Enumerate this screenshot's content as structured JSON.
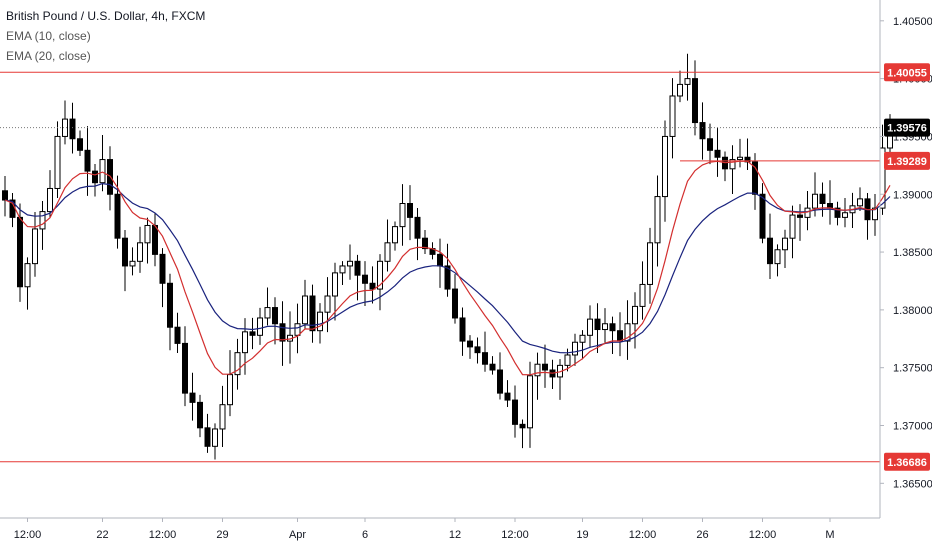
{
  "legend": {
    "symbol": "British Pound / U.S. Dollar, 4h, FXCM",
    "indicators": [
      "EMA (10, close)",
      "EMA (20, close)"
    ]
  },
  "colors": {
    "up": "#ffffff",
    "down": "#000000",
    "wick": "#000000",
    "ema10": "#d32f2f",
    "ema20": "#1a237e",
    "level": "#e53935",
    "last_price": "#000000",
    "axis_text": "#131722"
  },
  "chart_data": {
    "type": "candlestick",
    "ylim": [
      1.362,
      1.4068
    ],
    "y_ticks": [
      "1.40500",
      "1.40000",
      "1.39500",
      "1.39000",
      "1.38500",
      "1.38000",
      "1.37500",
      "1.37000",
      "1.36500"
    ],
    "x_ticks": [
      "12:00",
      "22",
      "12:00",
      "29",
      "Apr",
      "6",
      "12",
      "12:00",
      "19",
      "12:00",
      "26",
      "12:00",
      "M"
    ],
    "x_tick_index": [
      3,
      13,
      21,
      29,
      39,
      48,
      60,
      68,
      77,
      85,
      93,
      101,
      110
    ],
    "horizontal_levels": [
      {
        "price": 1.40055,
        "label": "1.40055",
        "from_index": 0,
        "to_index": null
      },
      {
        "price": 1.39289,
        "label": "1.39289",
        "from_index": 90,
        "to_index": null
      },
      {
        "price": 1.36686,
        "label": "1.36686",
        "from_index": 0,
        "to_index": null
      }
    ],
    "last_price": {
      "price": 1.39576,
      "label": "1.39576"
    },
    "close": [
      1.3895,
      1.388,
      1.382,
      1.384,
      1.387,
      1.3885,
      1.3905,
      1.395,
      1.3965,
      1.3948,
      1.3938,
      1.392,
      1.391,
      1.393,
      1.39,
      1.3862,
      1.3838,
      1.3842,
      1.3858,
      1.3873,
      1.3848,
      1.3823,
      1.3785,
      1.3771,
      1.3728,
      1.372,
      1.3698,
      1.3682,
      1.3697,
      1.3718,
      1.3744,
      1.3763,
      1.3781,
      1.3778,
      1.3793,
      1.3802,
      1.3788,
      1.3773,
      1.3778,
      1.3788,
      1.3812,
      1.3782,
      1.3798,
      1.3812,
      1.3832,
      1.3838,
      1.3842,
      1.383,
      1.3823,
      1.3818,
      1.3842,
      1.3858,
      1.3872,
      1.3892,
      1.388,
      1.3862,
      1.3853,
      1.3848,
      1.3838,
      1.3818,
      1.3793,
      1.3773,
      1.3768,
      1.3763,
      1.3753,
      1.3748,
      1.3728,
      1.3722,
      1.3701,
      1.3698,
      1.3743,
      1.3753,
      1.3748,
      1.3742,
      1.3752,
      1.3761,
      1.3772,
      1.3778,
      1.3792,
      1.3783,
      1.3788,
      1.3782,
      1.3773,
      1.3788,
      1.3803,
      1.3822,
      1.3858,
      1.3898,
      1.395,
      1.3985,
      1.3995,
      1.4,
      1.3962,
      1.3948,
      1.3938,
      1.3932,
      1.3922,
      1.393,
      1.3932,
      1.3928,
      1.39,
      1.3862,
      1.384,
      1.3852,
      1.3862,
      1.3882,
      1.388,
      1.3888,
      1.39,
      1.3892,
      1.3888,
      1.388,
      1.3884,
      1.389,
      1.3896,
      1.3878,
      1.3888,
      1.394,
      1.3958
    ]
  }
}
